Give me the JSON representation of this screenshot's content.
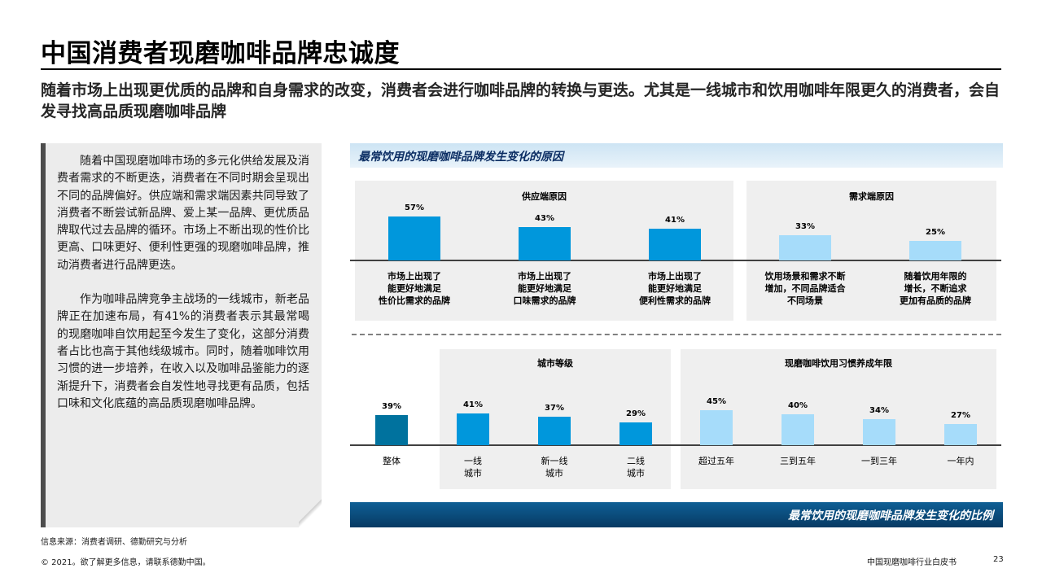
{
  "title": "中国消费者现磨咖啡品牌忠诚度",
  "subtitle": "随着市场上出现更优质的品牌和自身需求的改变，消费者会进行咖啡品牌的转换与更迭。尤其是一线城市和饮用咖啡年限更久的消费者，会自发寻找高品质现磨咖啡品牌",
  "left_text": {
    "p1": "随着中国现磨咖啡市场的多元化供给发展及消费者需求的不断更迭，消费者在不同时期会呈现出不同的品牌偏好。供应端和需求端因素共同导致了消费者不断尝试新品牌、爱上某一品牌、更优质品牌取代过去品牌的循环。市场上不断出现的性价比更高、口味更好、便利性更强的现磨咖啡品牌，推动消费者进行品牌更迭。",
    "p2": "作为咖啡品牌竞争主战场的一线城市，新老品牌正在加速布局，有41%的消费者表示其最常喝的现磨咖啡自饮用起至今发生了变化，这部分消费者占比也高于其他线级城市。同时，随着咖啡饮用习惯的进一步培养，在收入以及咖啡品鉴能力的逐渐提升下，消费者会自发性地寻找更有品质，包括口味和文化底蕴的高品质现磨咖啡品牌。"
  },
  "top_banner": "最常饮用的现磨咖啡品牌发生变化的原因",
  "bottom_banner": "最常饮用的现磨咖啡品牌发生变化的比例",
  "colors": {
    "supply": "#0097dc",
    "demand": "#a6dcfa",
    "overall": "#00729e",
    "city": "#0097dc",
    "years": "#a6dcfa"
  },
  "chart_data": [
    {
      "type": "bar",
      "title": "供应端原因",
      "unit": "%",
      "categories": [
        [
          "市场上出现了",
          "能更好地满足",
          "性价比需求的品牌"
        ],
        [
          "市场上出现了",
          "能更好地满足",
          "口味需求的品牌"
        ],
        [
          "市场上出现了",
          "能更好地满足",
          "便利性需求的品牌"
        ]
      ],
      "values": [
        57,
        43,
        41
      ],
      "labels": [
        "57%",
        "43%",
        "41%"
      ]
    },
    {
      "type": "bar",
      "title": "需求端原因",
      "unit": "%",
      "categories": [
        [
          "饮用场景和需求不断",
          "增加，不同品牌适合",
          "不同场景"
        ],
        [
          "随着饮用年限的",
          "增长，不断追求",
          "更加有品质的品牌"
        ]
      ],
      "values": [
        33,
        25
      ],
      "labels": [
        "33%",
        "25%"
      ]
    },
    {
      "type": "bar",
      "title": "城市等级",
      "unit": "%",
      "categories": [
        [
          "整体"
        ],
        [
          "一线",
          "城市"
        ],
        [
          "新一线",
          "城市"
        ],
        [
          "二线",
          "城市"
        ]
      ],
      "values": [
        39,
        41,
        37,
        29
      ],
      "labels": [
        "39%",
        "41%",
        "37%",
        "29%"
      ]
    },
    {
      "type": "bar",
      "title": "现磨咖啡饮用习惯养成年限",
      "unit": "%",
      "categories": [
        [
          "超过五年"
        ],
        [
          "三到五年"
        ],
        [
          "一到三年"
        ],
        [
          "一年内"
        ]
      ],
      "values": [
        45,
        40,
        34,
        27
      ],
      "labels": [
        "45%",
        "40%",
        "34%",
        "27%"
      ]
    }
  ],
  "footer": {
    "source": "信息来源：消费者调研、德勤研究与分析",
    "copyright": "© 2021。欲了解更多信息，请联系德勤中国。",
    "doc_title": "中国现磨咖啡行业白皮书",
    "page": "23"
  }
}
